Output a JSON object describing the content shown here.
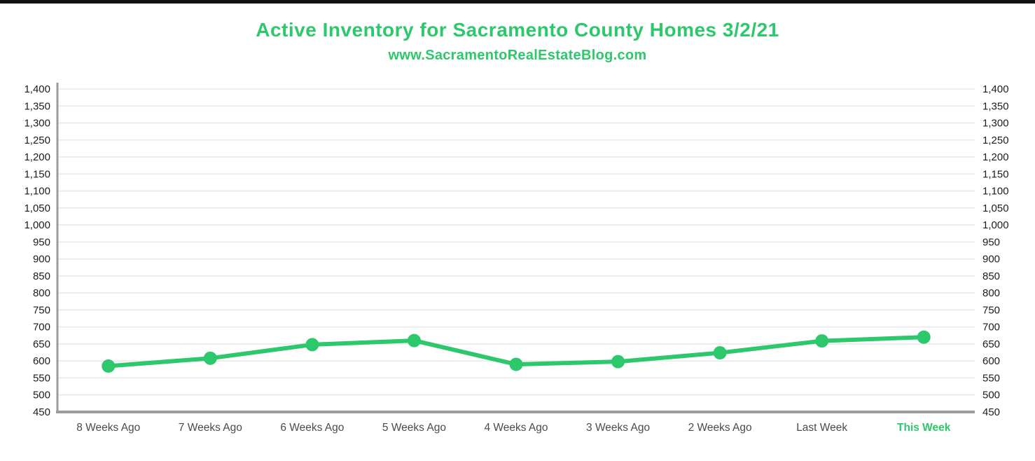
{
  "window": {
    "top_bar_color": "#111111",
    "background_color": "#ffffff"
  },
  "header": {
    "title": "Active Inventory for Sacramento County Homes 3/2/21",
    "subtitle": "www.SacramentoRealEstateBlog.com",
    "accent_color": "#2dc86b"
  },
  "chart_data": {
    "type": "line",
    "title": "Active Inventory for Sacramento County Homes 3/2/21",
    "subtitle": "www.SacramentoRealEstateBlog.com",
    "xlabel": "",
    "ylabel": "",
    "categories": [
      "8 Weeks Ago",
      "7 Weeks Ago",
      "6 Weeks Ago",
      "5 Weeks Ago",
      "4 Weeks Ago",
      "3 Weeks Ago",
      "2 Weeks Ago",
      "Last Week",
      "This Week"
    ],
    "series": [
      {
        "name": "Active Inventory",
        "values": [
          585,
          608,
          648,
          660,
          590,
          598,
          624,
          659,
          670
        ]
      }
    ],
    "ylim": [
      450,
      1400
    ],
    "ytick_step": 50,
    "grid": true,
    "legend_position": "none",
    "y_axis_sides": "both",
    "highlighted_category": "This Week",
    "colors": {
      "line": "#2dc86b",
      "marker": "#2dc86b",
      "axis": "#9c9c9c",
      "gridline": "#e9e9e9",
      "y_tick_label": "#1c1c1c",
      "x_tick_label": "#4a4a4a",
      "highlighted_x_label": "#2dc86b"
    }
  }
}
